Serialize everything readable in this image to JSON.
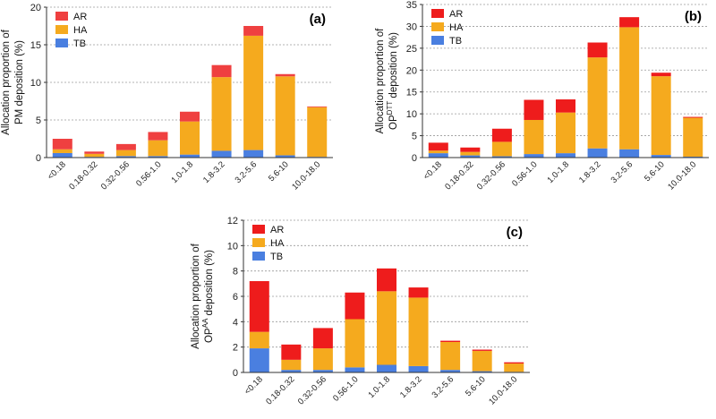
{
  "chart_data": [
    {
      "type": "bar",
      "stacked": true,
      "panel_label": "(a)",
      "ylabel_lines": [
        "Allocation proportion of",
        "PM deposition (%)"
      ],
      "ylim": [
        0,
        20
      ],
      "yticks": [
        0,
        5,
        10,
        15,
        20
      ],
      "categories": [
        "<0.18",
        "0.18-0.32",
        "0.32-0.56",
        "0.56-1.0",
        "1.0-1.8",
        "1.8-3.2",
        "3.2-5.6",
        "5.6-10",
        "10.0-18.0"
      ],
      "series": [
        {
          "name": "TB",
          "color": "#4a7fe0",
          "values": [
            0.6,
            0.1,
            0.2,
            0.2,
            0.4,
            0.9,
            1.0,
            0.3,
            0.1
          ]
        },
        {
          "name": "HA",
          "color": "#f5aa1e",
          "values": [
            0.5,
            0.4,
            0.8,
            2.1,
            4.4,
            9.8,
            15.2,
            10.5,
            6.6
          ]
        },
        {
          "name": "AR",
          "color": "#ef4040",
          "values": [
            1.4,
            0.3,
            0.8,
            1.1,
            1.3,
            1.6,
            1.3,
            0.3,
            0.1
          ]
        }
      ],
      "legend": [
        "AR",
        "HA",
        "TB"
      ],
      "legend_position": "top-left"
    },
    {
      "type": "bar",
      "stacked": true,
      "panel_label": "(b)",
      "ylabel_lines": [
        "Allocation proportion of",
        "OP deposition (%)"
      ],
      "ylabel_super": "DTT",
      "ylim": [
        0,
        35
      ],
      "yticks": [
        0,
        5,
        10,
        15,
        20,
        25,
        30,
        35
      ],
      "categories": [
        "<0.18",
        "0.18-0.32",
        "0.32-0.56",
        "0.56-1.0",
        "1.0-1.8",
        "1.8-3.2",
        "3.2-5.6",
        "5.6-10",
        "10.0-18.0"
      ],
      "series": [
        {
          "name": "TB",
          "color": "#4a7fe0",
          "values": [
            1.0,
            0.5,
            0.3,
            0.8,
            1.0,
            2.1,
            1.9,
            0.6,
            0.2
          ]
        },
        {
          "name": "HA",
          "color": "#f5aa1e",
          "values": [
            0.6,
            0.8,
            3.3,
            7.8,
            9.3,
            20.8,
            27.9,
            18.0,
            8.9
          ]
        },
        {
          "name": "AR",
          "color": "#ee1c1c",
          "values": [
            1.8,
            1.0,
            3.0,
            4.6,
            3.0,
            3.4,
            2.3,
            0.8,
            0.2
          ]
        }
      ],
      "legend": [
        "AR",
        "HA",
        "TB"
      ],
      "legend_position": "top-left"
    },
    {
      "type": "bar",
      "stacked": true,
      "panel_label": "(c)",
      "ylabel_lines": [
        "Allocation proportion of",
        "OP deposition (%)"
      ],
      "ylabel_super": "AA",
      "ylim": [
        0,
        12
      ],
      "yticks": [
        0,
        2,
        4,
        6,
        8,
        10,
        12
      ],
      "categories": [
        "<0.18",
        "0.18-0.32",
        "0.32-0.56",
        "0.56-1.0",
        "1.0-1.8",
        "1.8-3.2",
        "3.2-5.6",
        "5.6-10",
        "10.0-18.0"
      ],
      "series": [
        {
          "name": "TB",
          "color": "#4a7fe0",
          "values": [
            1.9,
            0.2,
            0.2,
            0.4,
            0.6,
            0.5,
            0.2,
            0.1,
            0.05
          ]
        },
        {
          "name": "HA",
          "color": "#f5aa1e",
          "values": [
            1.3,
            0.8,
            1.7,
            3.8,
            5.8,
            5.4,
            2.2,
            1.6,
            0.65
          ]
        },
        {
          "name": "AR",
          "color": "#ee1c1c",
          "values": [
            4.0,
            1.2,
            1.6,
            2.1,
            1.8,
            0.8,
            0.1,
            0.1,
            0.1
          ]
        }
      ],
      "legend": [
        "AR",
        "HA",
        "TB"
      ],
      "legend_position": "top-left"
    }
  ]
}
